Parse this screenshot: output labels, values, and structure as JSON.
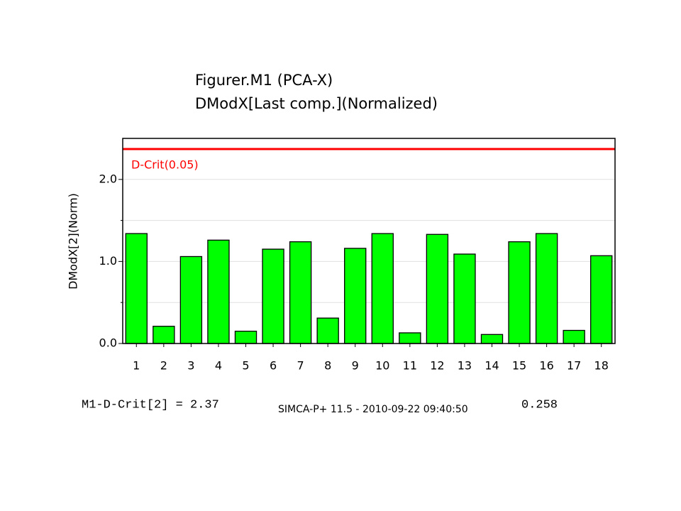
{
  "chart_data": {
    "type": "bar",
    "title": "Figurer.M1 (PCA-X)",
    "subtitle": "DModX[Last comp.](Normalized)",
    "y_label": "DModX[2](Norm)",
    "categories": [
      "1",
      "2",
      "3",
      "4",
      "5",
      "6",
      "7",
      "8",
      "9",
      "10",
      "11",
      "12",
      "13",
      "14",
      "15",
      "16",
      "17",
      "18"
    ],
    "values": [
      1.34,
      0.21,
      1.06,
      1.26,
      0.15,
      1.15,
      1.24,
      0.31,
      1.16,
      1.34,
      0.13,
      1.33,
      1.09,
      0.11,
      1.24,
      1.34,
      0.16,
      1.07
    ],
    "color": "#00ff00",
    "ylim": [
      0,
      2.5
    ],
    "yticks": [
      {
        "value": 0,
        "label": "0.0"
      },
      {
        "value": 1,
        "label": "1.0"
      },
      {
        "value": 2,
        "label": "2.0"
      }
    ],
    "minor_yticks": [
      0.5,
      1.5
    ],
    "grid": true,
    "reference_line": {
      "label": "D-Crit(0.05)",
      "value": 2.37,
      "color": "#ff0000"
    },
    "footnote_left": "M1-D-Crit[2] = 2.37",
    "footnote_right": "0.258",
    "stamp": "SIMCA-P+ 11.5 - 2010-09-22 09:40:50"
  }
}
